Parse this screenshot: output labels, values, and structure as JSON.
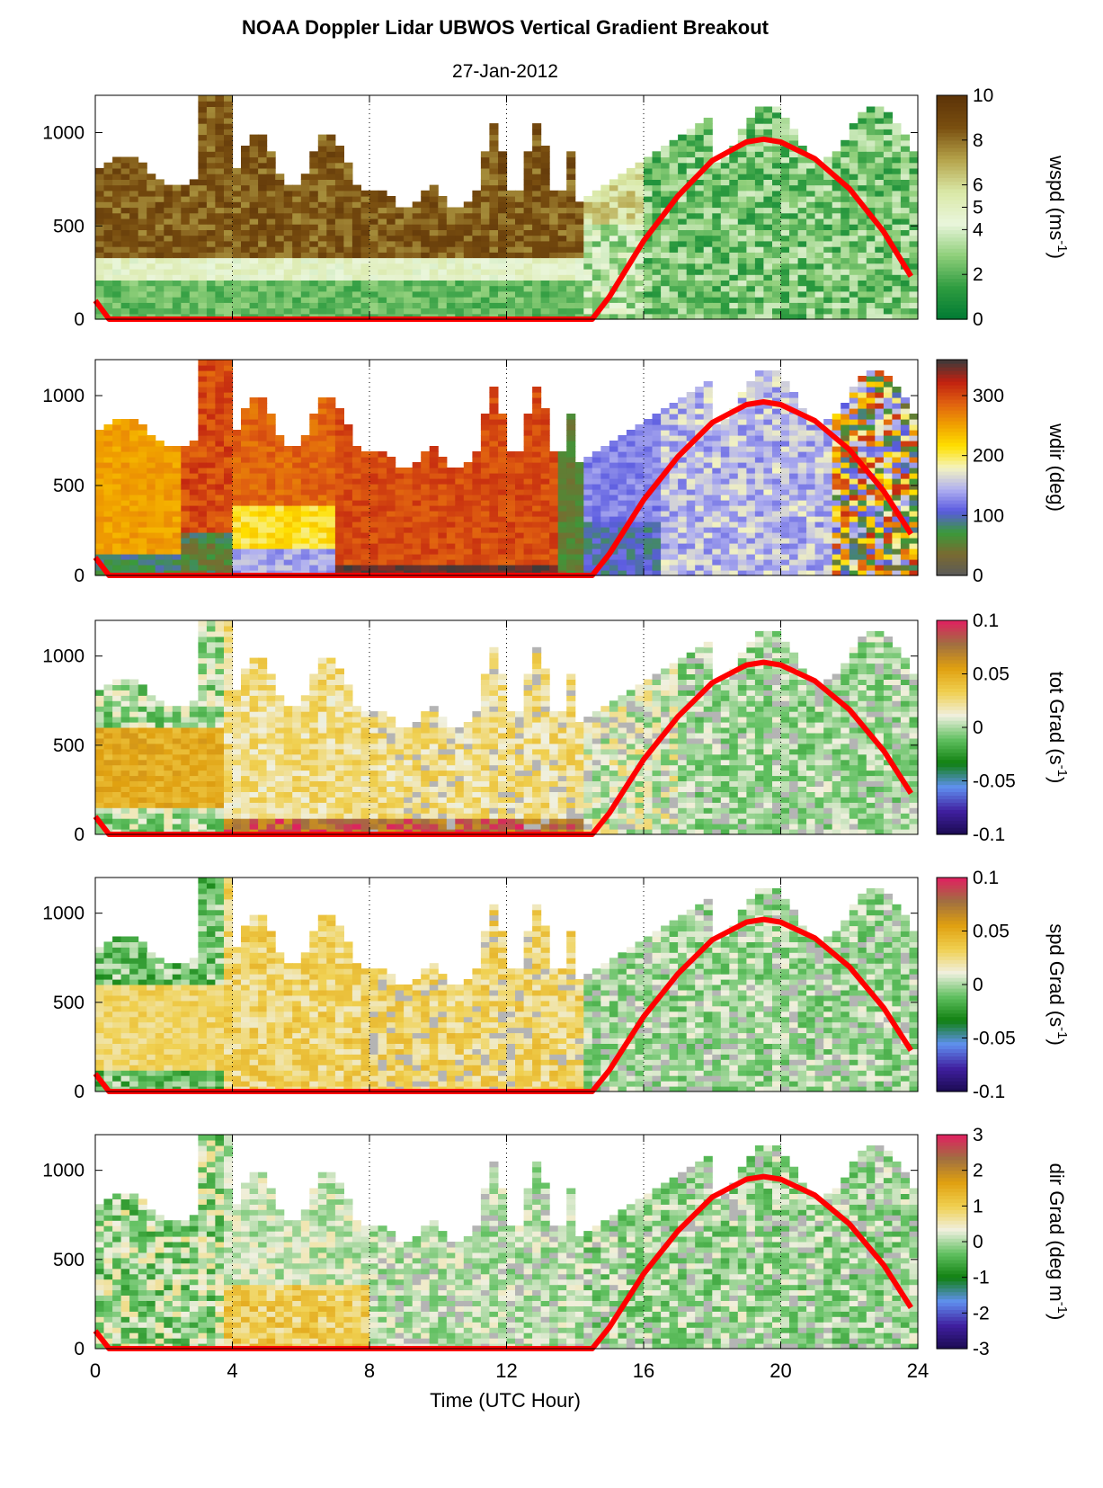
{
  "title": "NOAA Doppler Lidar  UBWOS  Vertical Gradient Breakout",
  "subtitle": "27-Jan-2012",
  "chart_data": [
    {
      "type": "heatmap",
      "ylabel_main": "wspd",
      "ylabel_unit": "(ms",
      "ylabel_exp": "-1",
      "ylabel_close": ")",
      "ylim": [
        0,
        1200
      ],
      "yticks": [
        0,
        500,
        1000
      ],
      "colorbar_ticks": [
        "0",
        "2",
        "4",
        "5",
        "6",
        "8",
        "10"
      ],
      "colorbar_values": [
        0,
        2,
        4,
        5,
        6,
        8,
        10
      ],
      "clim": [
        0,
        10
      ],
      "colormap": [
        "#007a33",
        "#2e9c40",
        "#8fcf7a",
        "#eaf6dc",
        "#d9e8a6",
        "#b5a34a",
        "#7a4f10",
        "#5c3308"
      ]
    },
    {
      "type": "heatmap",
      "ylabel_main": "wdir (deg)",
      "ylabel_unit": "",
      "ylabel_exp": "",
      "ylabel_close": "",
      "ylim": [
        0,
        1200
      ],
      "yticks": [
        0,
        500,
        1000
      ],
      "colorbar_ticks": [
        "0",
        "100",
        "200",
        "300"
      ],
      "colorbar_values": [
        0,
        100,
        200,
        300
      ],
      "clim": [
        0,
        360
      ],
      "colormap": [
        "#5a5a5a",
        "#7a6a30",
        "#3a9a3a",
        "#5a5ae0",
        "#b0b0f0",
        "#f4f4c0",
        "#ffe000",
        "#f0a000",
        "#e06010",
        "#c02010",
        "#3a3a3a"
      ]
    },
    {
      "type": "heatmap",
      "ylabel_main": "tot Grad",
      "ylabel_unit": "(s",
      "ylabel_exp": "-1",
      "ylabel_close": ")",
      "ylim": [
        0,
        1200
      ],
      "yticks": [
        0,
        500,
        1000
      ],
      "colorbar_ticks": [
        "-0.1",
        "-0.05",
        "0",
        "0.05",
        "0.1"
      ],
      "colorbar_values": [
        -0.1,
        -0.05,
        0,
        0.05,
        0.1
      ],
      "clim": [
        -0.1,
        0.1
      ],
      "colormap": [
        "#1a0a50",
        "#4020a0",
        "#6090f0",
        "#108010",
        "#60c060",
        "#f0f0e0",
        "#f0d050",
        "#e0a010",
        "#a07040",
        "#e02060"
      ]
    },
    {
      "type": "heatmap",
      "ylabel_main": "spd Grad",
      "ylabel_unit": "(s",
      "ylabel_exp": "-1",
      "ylabel_close": ")",
      "ylim": [
        0,
        1200
      ],
      "yticks": [
        0,
        500,
        1000
      ],
      "colorbar_ticks": [
        "-0.1",
        "-0.05",
        "0",
        "0.05",
        "0.1"
      ],
      "colorbar_values": [
        -0.1,
        -0.05,
        0,
        0.05,
        0.1
      ],
      "clim": [
        -0.1,
        0.1
      ],
      "colormap": [
        "#1a0a50",
        "#4020a0",
        "#6090f0",
        "#108010",
        "#60c060",
        "#f0f0e0",
        "#f0d050",
        "#e0a010",
        "#a07040",
        "#e02060"
      ]
    },
    {
      "type": "heatmap",
      "ylabel_main": "dir Grad (deg m",
      "ylabel_unit": "",
      "ylabel_exp": "-1",
      "ylabel_close": ")",
      "ylim": [
        0,
        1200
      ],
      "yticks": [
        0,
        500,
        1000
      ],
      "colorbar_ticks": [
        "-3",
        "-2",
        "-1",
        "0",
        "1",
        "2",
        "3"
      ],
      "colorbar_values": [
        -3,
        -2,
        -1,
        0,
        1,
        2,
        3
      ],
      "clim": [
        -3,
        3
      ],
      "colormap": [
        "#1a0a50",
        "#4020a0",
        "#6090f0",
        "#108010",
        "#60c060",
        "#f0f0e0",
        "#f0d050",
        "#e0a010",
        "#a07040",
        "#e02060"
      ]
    }
  ],
  "xaxis": {
    "label": "Time (UTC Hour)",
    "xlim": [
      0,
      24
    ],
    "ticks": [
      0,
      4,
      8,
      12,
      16,
      20,
      24
    ],
    "tick_labels": [
      "0",
      "4",
      "8",
      "12",
      "16",
      "20",
      "24"
    ]
  },
  "sun_curve": {
    "color": "#ff0000",
    "points": [
      [
        0,
        100
      ],
      [
        0.4,
        0
      ],
      [
        14.5,
        0
      ],
      [
        15,
        120
      ],
      [
        16,
        420
      ],
      [
        17,
        660
      ],
      [
        18,
        850
      ],
      [
        19,
        950
      ],
      [
        19.5,
        965
      ],
      [
        20,
        950
      ],
      [
        21,
        860
      ],
      [
        22,
        700
      ],
      [
        23,
        470
      ],
      [
        23.8,
        230
      ]
    ]
  }
}
